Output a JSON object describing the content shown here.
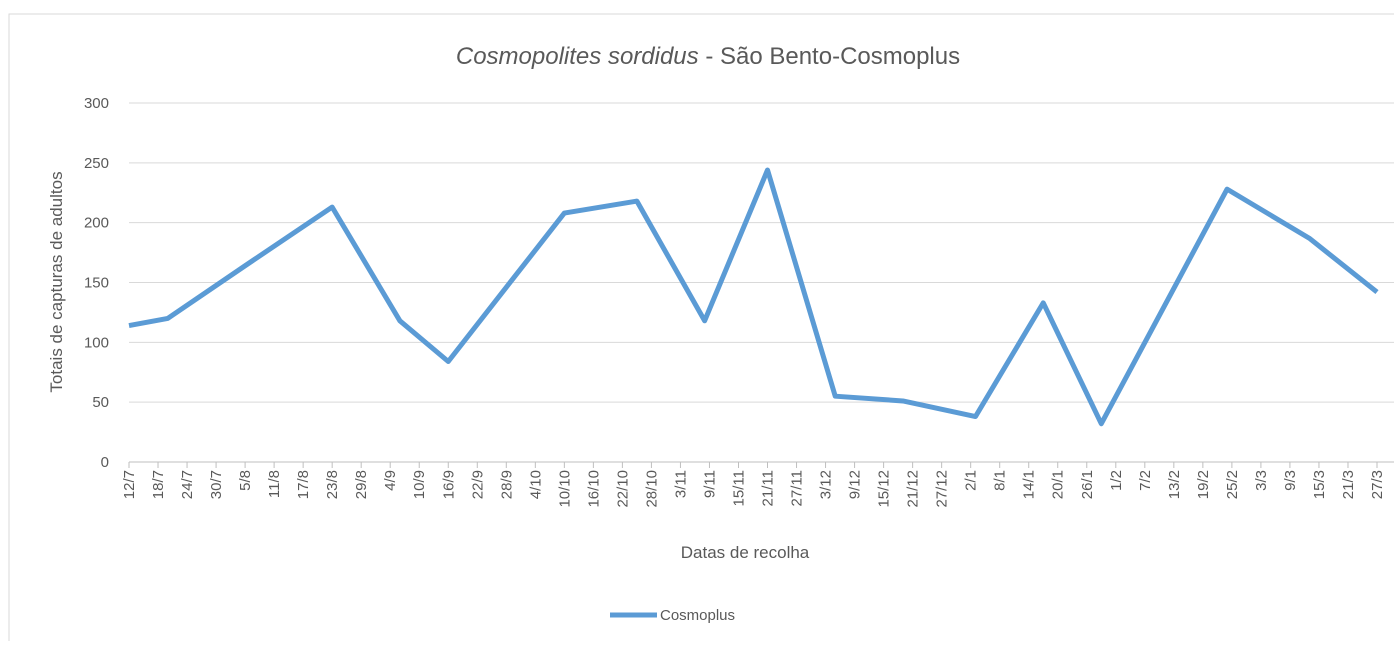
{
  "chart_data": {
    "type": "line",
    "title": {
      "italic": "Cosmopolites sordidus",
      "rest": " - São Bento-Cosmoplus"
    },
    "x_label": "Datas de recolha",
    "y_label": "Totais de capturas de adultos",
    "xlim": [
      0,
      258
    ],
    "xticks": [
      {
        "value": 0,
        "label": "12/7"
      },
      {
        "value": 6,
        "label": "18/7"
      },
      {
        "value": 12,
        "label": "24/7"
      },
      {
        "value": 18,
        "label": "30/7"
      },
      {
        "value": 24,
        "label": "5/8"
      },
      {
        "value": 30,
        "label": "11/8"
      },
      {
        "value": 36,
        "label": "17/8"
      },
      {
        "value": 42,
        "label": "23/8"
      },
      {
        "value": 48,
        "label": "29/8"
      },
      {
        "value": 54,
        "label": "4/9"
      },
      {
        "value": 60,
        "label": "10/9"
      },
      {
        "value": 66,
        "label": "16/9"
      },
      {
        "value": 72,
        "label": "22/9"
      },
      {
        "value": 78,
        "label": "28/9"
      },
      {
        "value": 84,
        "label": "4/10"
      },
      {
        "value": 90,
        "label": "10/10"
      },
      {
        "value": 96,
        "label": "16/10"
      },
      {
        "value": 102,
        "label": "22/10"
      },
      {
        "value": 108,
        "label": "28/10"
      },
      {
        "value": 114,
        "label": "3/11"
      },
      {
        "value": 120,
        "label": "9/11"
      },
      {
        "value": 126,
        "label": "15/11"
      },
      {
        "value": 132,
        "label": "21/11"
      },
      {
        "value": 138,
        "label": "27/11"
      },
      {
        "value": 144,
        "label": "3/12"
      },
      {
        "value": 150,
        "label": "9/12"
      },
      {
        "value": 156,
        "label": "15/12"
      },
      {
        "value": 162,
        "label": "21/12"
      },
      {
        "value": 168,
        "label": "27/12"
      },
      {
        "value": 174,
        "label": "2/1"
      },
      {
        "value": 180,
        "label": "8/1"
      },
      {
        "value": 186,
        "label": "14/1"
      },
      {
        "value": 192,
        "label": "20/1"
      },
      {
        "value": 198,
        "label": "26/1"
      },
      {
        "value": 204,
        "label": "1/2"
      },
      {
        "value": 210,
        "label": "7/2"
      },
      {
        "value": 216,
        "label": "13/2"
      },
      {
        "value": 222,
        "label": "19/2"
      },
      {
        "value": 228,
        "label": "25/2"
      },
      {
        "value": 234,
        "label": "3/3"
      },
      {
        "value": 240,
        "label": "9/3"
      },
      {
        "value": 246,
        "label": "15/3"
      },
      {
        "value": 252,
        "label": "21/3"
      },
      {
        "value": 258,
        "label": "27/3"
      }
    ],
    "ylim": [
      0,
      300
    ],
    "yticks": [
      0,
      50,
      100,
      150,
      200,
      250,
      300
    ],
    "grid": true,
    "series": [
      {
        "name": "Cosmoplus",
        "color": "#5b9bd5",
        "x": [
          0,
          8,
          24,
          42,
          56,
          66,
          90,
          105,
          119,
          132,
          146,
          160,
          175,
          189,
          201,
          227,
          244,
          258
        ],
        "values": [
          114,
          120,
          164,
          213,
          118,
          84,
          208,
          218,
          118,
          244,
          55,
          51,
          38,
          133,
          32,
          228,
          187,
          142
        ]
      }
    ]
  }
}
